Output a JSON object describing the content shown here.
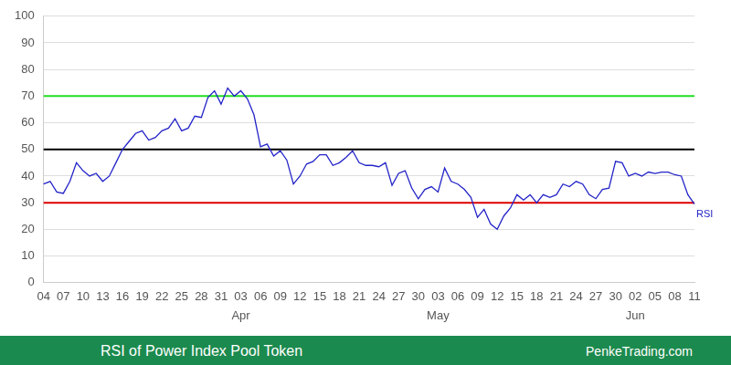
{
  "chart_data": {
    "type": "line",
    "title": "RSI of Power Index Pool Token",
    "source": "PenkeTrading.com",
    "categories": [
      "04",
      null,
      null,
      "07",
      null,
      null,
      "10",
      null,
      null,
      "13",
      null,
      null,
      "16",
      null,
      null,
      "19",
      null,
      null,
      "22",
      null,
      null,
      "25",
      null,
      null,
      "28",
      null,
      null,
      "31",
      null,
      null,
      "03",
      null,
      null,
      "06",
      null,
      null,
      "09",
      null,
      null,
      "12",
      null,
      null,
      "15",
      null,
      null,
      "18",
      null,
      null,
      "21",
      null,
      null,
      "24",
      null,
      null,
      "27",
      null,
      null,
      "30",
      null,
      null,
      "03",
      null,
      null,
      "06",
      null,
      null,
      "09",
      null,
      null,
      "12",
      null,
      null,
      "15",
      null,
      null,
      "18",
      null,
      null,
      "21",
      null,
      null,
      "24",
      null,
      null,
      "27",
      null,
      null,
      "30",
      null,
      null,
      "02",
      null,
      null,
      "05",
      null,
      null,
      "08",
      null,
      null,
      "11"
    ],
    "month_labels": [
      null,
      null,
      null,
      null,
      null,
      null,
      null,
      null,
      null,
      null,
      null,
      null,
      null,
      null,
      null,
      null,
      null,
      null,
      null,
      null,
      null,
      null,
      null,
      null,
      null,
      null,
      null,
      null,
      null,
      null,
      "Apr",
      null,
      null,
      null,
      null,
      null,
      null,
      null,
      null,
      null,
      null,
      null,
      null,
      null,
      null,
      null,
      null,
      null,
      null,
      null,
      null,
      null,
      null,
      null,
      null,
      null,
      null,
      null,
      null,
      null,
      "May",
      null,
      null,
      null,
      null,
      null,
      null,
      null,
      null,
      null,
      null,
      null,
      null,
      null,
      null,
      null,
      null,
      null,
      null,
      null,
      null,
      null,
      null,
      null,
      null,
      null,
      null,
      null,
      null,
      null,
      "Jun",
      null,
      null,
      null,
      null,
      null,
      null,
      null,
      null,
      null
    ],
    "series": [
      {
        "name": "RSI",
        "color": "#2323c8",
        "values": [
          37,
          38,
          34,
          33.5,
          38,
          45,
          42,
          40,
          41,
          38,
          40,
          45,
          50,
          53,
          56,
          57,
          53.5,
          54.5,
          57,
          58,
          61.5,
          57,
          58,
          62.5,
          62,
          69.5,
          72,
          67,
          73,
          70,
          72,
          69,
          63,
          51,
          52,
          47.5,
          49.5,
          46,
          37,
          40,
          44.5,
          45.5,
          48,
          48,
          44,
          45,
          47,
          49.5,
          45,
          44,
          44,
          43.5,
          45,
          36.5,
          41,
          42,
          35.5,
          31.5,
          35,
          36,
          34,
          43,
          38,
          37,
          35,
          32,
          24.5,
          27.5,
          22,
          20,
          25,
          28,
          33,
          31,
          33,
          30,
          33,
          32,
          33,
          37,
          36,
          38,
          37,
          33,
          31.5,
          35,
          35.5,
          45.5,
          45,
          40,
          41,
          40,
          41.5,
          41,
          41.5,
          41.5,
          40.5,
          40,
          33,
          29.5
        ]
      }
    ],
    "reference_lines": [
      {
        "value": 70,
        "color": "#22dd22"
      },
      {
        "value": 50,
        "color": "#000000"
      },
      {
        "value": 30,
        "color": "#dd0000"
      }
    ],
    "ylim": [
      0,
      100
    ],
    "yticks": [
      0,
      10,
      20,
      30,
      40,
      50,
      60,
      70,
      80,
      90,
      100
    ],
    "grid": true
  }
}
